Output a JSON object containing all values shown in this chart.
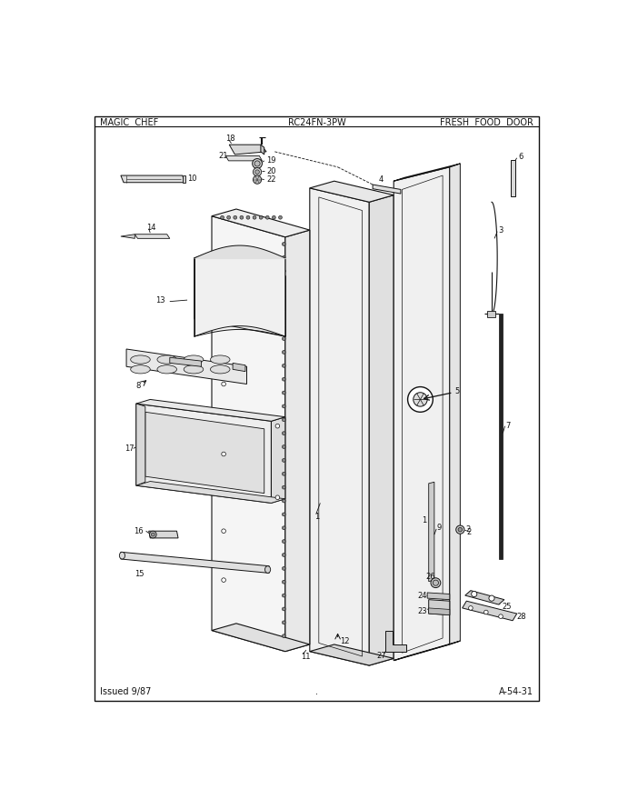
{
  "title_left": "MAGIC  CHEF",
  "title_center": "RC24FN-3PW",
  "title_right": "FRESH  FOOD  DOOR",
  "footer_left": "Issued 9/87",
  "footer_right": "A-54-31",
  "bg_color": "#ffffff",
  "border_color": "#111111",
  "text_color": "#111111",
  "fig_width": 6.8,
  "fig_height": 8.9,
  "dpi": 100
}
